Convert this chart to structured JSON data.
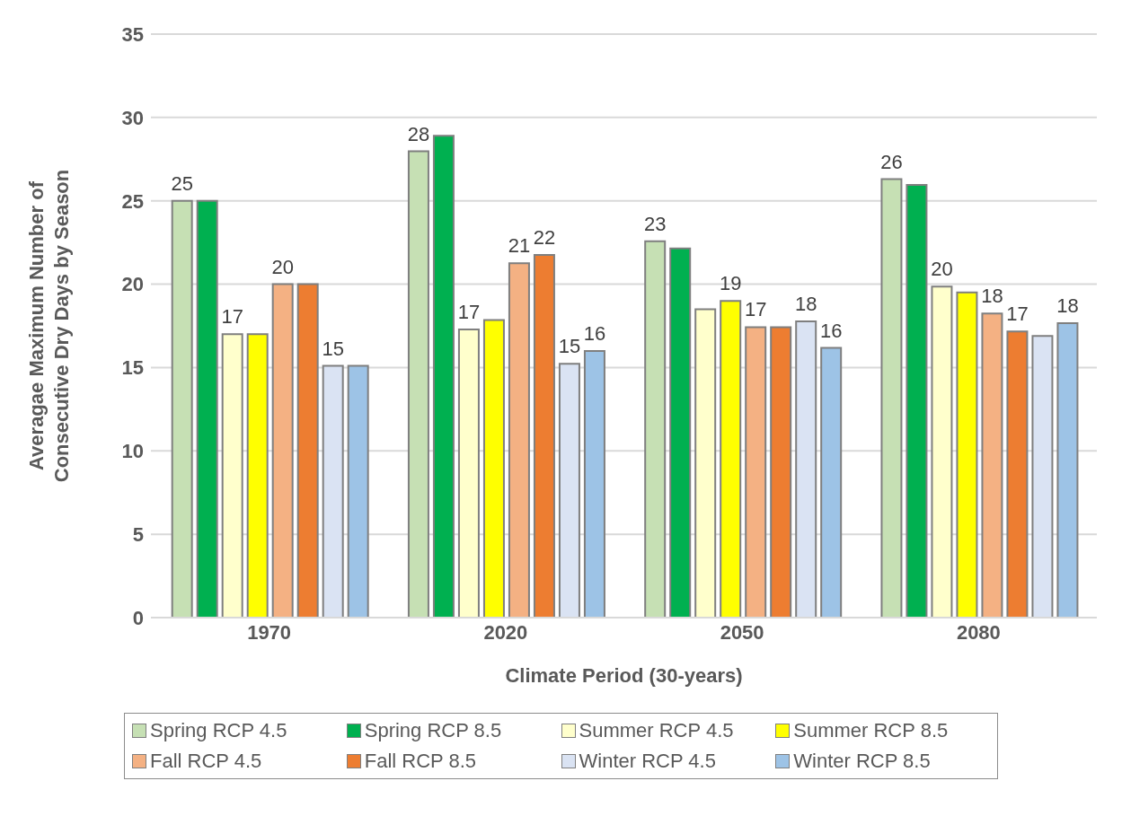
{
  "chart_data": {
    "type": "bar",
    "xlabel": "Climate Period (30-years)",
    "ylabel": "Averagae Maximum Number of  Consecutive Dry Days by Season",
    "categories": [
      "1970",
      "2020",
      "2050",
      "2080"
    ],
    "series": [
      {
        "name": "Spring RCP 4.5",
        "color": "#c6e0b4",
        "values": [
          25,
          27.97,
          22.57,
          26.3
        ],
        "value_labels": [
          "25",
          "28",
          "23",
          "26"
        ]
      },
      {
        "name": "Spring RCP 8.5",
        "color": "#00b050",
        "values": [
          25,
          28.9,
          22.15,
          25.95
        ],
        "value_labels": [
          null,
          null,
          null,
          null
        ]
      },
      {
        "name": "Summer RCP 4.5",
        "color": "#ffffcc",
        "values": [
          17,
          17.28,
          18.5,
          19.86
        ],
        "value_labels": [
          "17",
          "17",
          null,
          "20"
        ]
      },
      {
        "name": "Summer RCP 8.5",
        "color": "#ffff00",
        "values": [
          17,
          17.85,
          18.99,
          19.5
        ],
        "value_labels": [
          null,
          null,
          "19",
          null
        ]
      },
      {
        "name": "Fall RCP 4.5",
        "color": "#f4b183",
        "values": [
          20,
          21.26,
          17.42,
          18.24
        ],
        "value_labels": [
          "20",
          "21",
          "17",
          "18"
        ]
      },
      {
        "name": "Fall RCP 8.5",
        "color": "#ed7d31",
        "values": [
          20,
          21.76,
          17.42,
          17.16
        ],
        "value_labels": [
          null,
          "22",
          null,
          "17"
        ]
      },
      {
        "name": "Winter RCP 4.5",
        "color": "#dae3f3",
        "values": [
          15.1,
          15.23,
          17.77,
          16.9
        ],
        "value_labels": [
          "15",
          "15",
          "18",
          null
        ]
      },
      {
        "name": "Winter RCP 8.5",
        "color": "#9dc3e6",
        "values": [
          15.1,
          15.99,
          16.18,
          17.66
        ],
        "value_labels": [
          null,
          "16",
          "16",
          "18"
        ]
      }
    ],
    "ylim": [
      0,
      35
    ],
    "yticks": [
      0,
      5,
      10,
      15,
      20,
      25,
      30,
      35
    ],
    "grid": "y",
    "legend": "bottom"
  }
}
